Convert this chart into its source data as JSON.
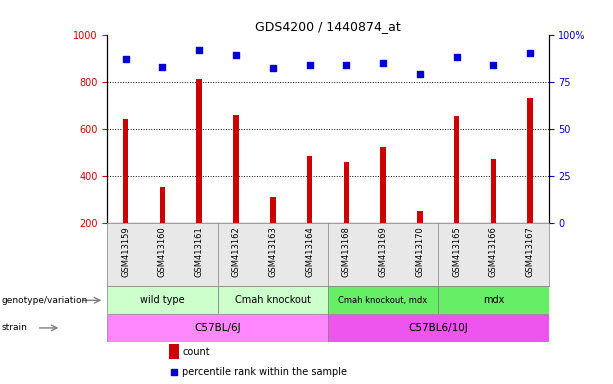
{
  "title": "GDS4200 / 1440874_at",
  "samples": [
    "GSM413159",
    "GSM413160",
    "GSM413161",
    "GSM413162",
    "GSM413163",
    "GSM413164",
    "GSM413168",
    "GSM413169",
    "GSM413170",
    "GSM413165",
    "GSM413166",
    "GSM413167"
  ],
  "counts": [
    640,
    355,
    810,
    660,
    310,
    485,
    460,
    525,
    250,
    655,
    470,
    730
  ],
  "percentile": [
    87,
    83,
    92,
    89,
    82,
    84,
    84,
    85,
    79,
    88,
    84,
    90
  ],
  "genotype_groups": [
    {
      "label": "wild type",
      "start": 0,
      "end": 3,
      "color": "#ccffcc"
    },
    {
      "label": "Cmah knockout",
      "start": 3,
      "end": 6,
      "color": "#ccffcc"
    },
    {
      "label": "Cmah knockout, mdx",
      "start": 6,
      "end": 9,
      "color": "#66ee66"
    },
    {
      "label": "mdx",
      "start": 9,
      "end": 12,
      "color": "#66ee66"
    }
  ],
  "strain_groups": [
    {
      "label": "C57BL/6J",
      "start": 0,
      "end": 6,
      "color": "#ff88ff"
    },
    {
      "label": "C57BL6/10J",
      "start": 6,
      "end": 12,
      "color": "#ee55ee"
    }
  ],
  "bar_color": "#cc0000",
  "dot_color": "#0000cc",
  "ylim_left": [
    200,
    1000
  ],
  "ylim_right": [
    0,
    100
  ],
  "yticks_left": [
    200,
    400,
    600,
    800,
    1000
  ],
  "yticks_right": [
    0,
    25,
    50,
    75,
    100
  ],
  "grid_values": [
    400,
    600,
    800
  ],
  "legend_labels": [
    "count",
    "percentile rank within the sample"
  ],
  "legend_colors": [
    "#cc0000",
    "#0000cc"
  ],
  "bar_width": 0.15
}
